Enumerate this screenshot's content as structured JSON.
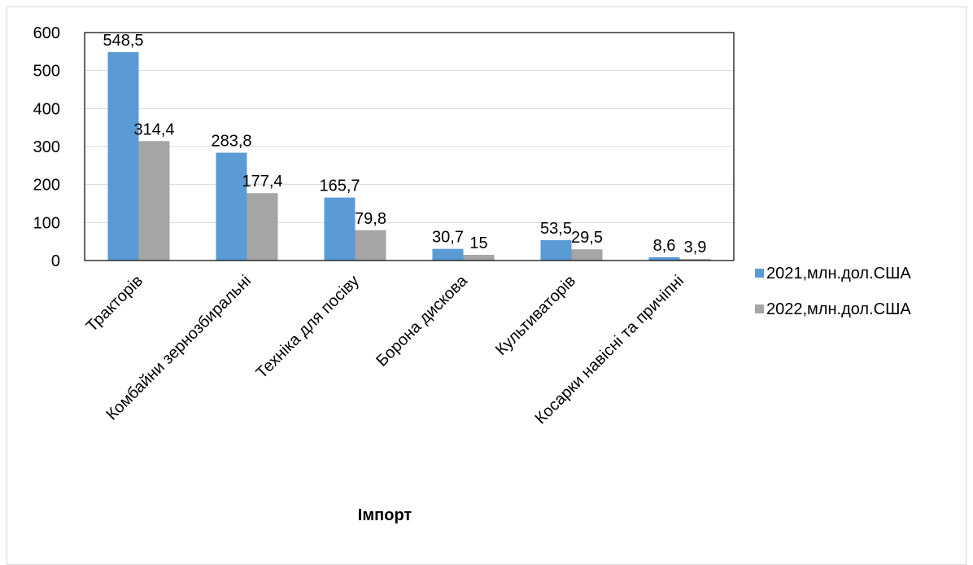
{
  "chart_data": {
    "type": "bar",
    "xlabel": "Імпорт",
    "ylabel": "",
    "ylim": [
      0,
      600
    ],
    "yticks": [
      "0",
      "100",
      "200",
      "300",
      "400",
      "500",
      "600"
    ],
    "grid": true,
    "legend_position": "right",
    "categories": [
      "Тракторів",
      "Комбайни зернозбиральні",
      "Техніка для посіву",
      "Борона дискова",
      "Культиваторів",
      "Косарки навісні та причіпні"
    ],
    "series": [
      {
        "name": "2021,млн.дол.США",
        "color": "#5b9bd5",
        "values": [
          548.5,
          283.8,
          165.7,
          30.7,
          53.5,
          8.6
        ],
        "labels": [
          "548,5",
          "283,8",
          "165,7",
          "30,7",
          "53,5",
          "8,6"
        ]
      },
      {
        "name": "2022,млн.дол.США",
        "color": "#a5a5a5",
        "values": [
          314.4,
          177.4,
          79.8,
          15,
          29.5,
          3.9
        ],
        "labels": [
          "314,4",
          "177,4",
          "79,8",
          "15",
          "29,5",
          "3,9"
        ]
      }
    ]
  }
}
